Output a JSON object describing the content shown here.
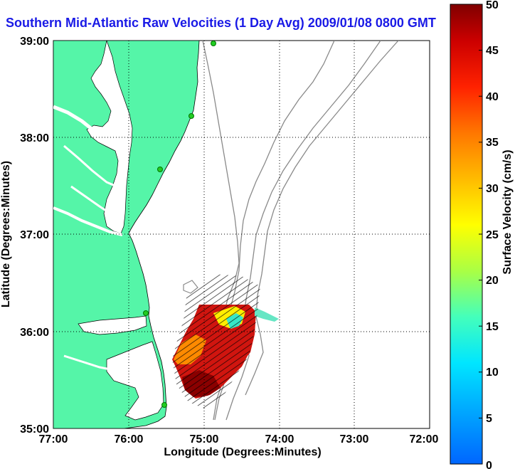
{
  "title": "Southern Mid-Atlantic Raw Velocities (1 Day Avg) 2009/01/08 0800 GMT",
  "xlabel": "Longitude (Degrees:Minutes)",
  "ylabel": "Latitude (Degrees:Minutes)",
  "colorbar_label": "Surface Velocity (cm/s)",
  "x_ticks": [
    "77:00",
    "76:00",
    "75:00",
    "74:00",
    "73:00",
    "72:00"
  ],
  "y_ticks": [
    "39:00",
    "38:00",
    "37:00",
    "36:00",
    "35:00"
  ],
  "colorbar_ticks": [
    "0",
    "5",
    "10",
    "15",
    "20",
    "25",
    "30",
    "35",
    "40",
    "45",
    "50"
  ],
  "colors": {
    "land": "#55f5a8",
    "title": "#1a1ae6",
    "isobath": "#8a8a8a",
    "grid": "#000000",
    "station": "#22cc22"
  },
  "map": {
    "lon_range": [
      "77:00W",
      "72:00W"
    ],
    "lat_range": [
      "35:00N",
      "39:00N"
    ],
    "colorbar_range": [
      0,
      50
    ],
    "grid": true,
    "colormap": "jet"
  }
}
